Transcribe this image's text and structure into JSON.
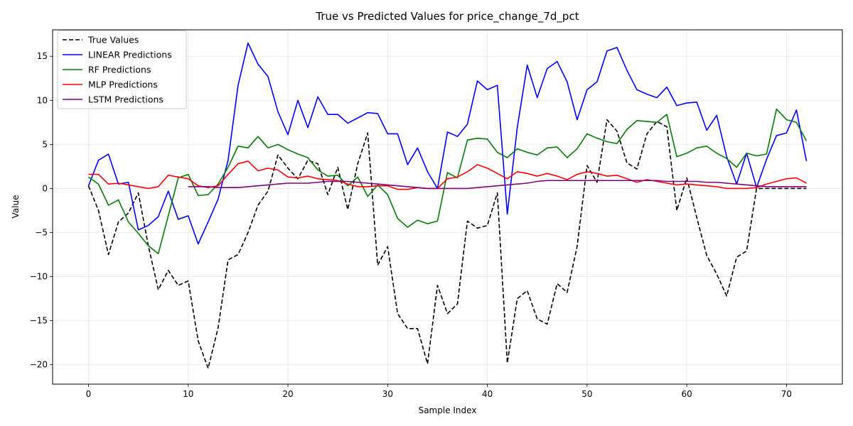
{
  "chart_data": {
    "type": "line",
    "title": "True vs Predicted Values for price_change_7d_pct",
    "xlabel": "Sample Index",
    "ylabel": "Value",
    "xlim": [
      -3.6,
      75.6
    ],
    "ylim": [
      -22.2,
      18.0
    ],
    "xticks": [
      0,
      10,
      20,
      30,
      40,
      50,
      60,
      70
    ],
    "yticks": [
      -20,
      -15,
      -10,
      -5,
      0,
      5,
      10,
      15
    ],
    "ytick_labels": [
      "−20",
      "−15",
      "−10",
      "−5",
      "0",
      "5",
      "10",
      "15"
    ],
    "grid": true,
    "legend_position": "upper-left",
    "series": [
      {
        "name": "True Values",
        "color": "#000000",
        "dashed": true,
        "x_start": 0,
        "values": [
          0.3,
          -2.5,
          -7.5,
          -3.8,
          -2.8,
          -0.5,
          -6.5,
          -11.5,
          -9.3,
          -11.0,
          -10.5,
          -17.3,
          -20.4,
          -15.8,
          -8.1,
          -7.5,
          -5.0,
          -1.9,
          -0.3,
          3.8,
          2.3,
          1.1,
          3.2,
          2.8,
          -0.7,
          2.4,
          -2.4,
          2.8,
          6.3,
          -8.7,
          -6.6,
          -14.2,
          -15.9,
          -15.9,
          -19.9,
          -11.0,
          -14.2,
          -13.1,
          -3.7,
          -4.5,
          -4.2,
          -0.5,
          -19.8,
          -12.5,
          -11.6,
          -14.8,
          -15.4,
          -10.8,
          -11.8,
          -6.6,
          2.6,
          0.7,
          7.8,
          6.5,
          2.9,
          2.2,
          6.2,
          7.6,
          7.0,
          -2.5,
          1.2,
          -3.3,
          -7.6,
          -9.7,
          -12.2,
          -7.8,
          -7.1,
          0.0,
          0.0,
          0.0,
          0.0,
          0.0,
          0.0
        ]
      },
      {
        "name": "LINEAR Predictions",
        "color": "#0000ff",
        "dashed": false,
        "x_start": 0,
        "values": [
          0.3,
          3.2,
          3.9,
          0.5,
          0.7,
          -4.7,
          -4.2,
          -3.2,
          -0.3,
          -3.5,
          -3.1,
          -6.3,
          -3.8,
          -1.2,
          3.2,
          11.7,
          16.5,
          14.1,
          12.7,
          8.7,
          6.1,
          10.0,
          6.9,
          10.4,
          8.4,
          8.4,
          7.4,
          8.0,
          8.6,
          8.5,
          6.2,
          6.2,
          2.7,
          4.6,
          1.9,
          0.0,
          6.4,
          5.9,
          7.3,
          12.2,
          11.2,
          11.7,
          -2.9,
          6.9,
          14.0,
          10.3,
          13.6,
          14.4,
          12.1,
          7.8,
          11.2,
          12.1,
          15.6,
          16.0,
          13.4,
          11.2,
          10.7,
          10.3,
          11.5,
          9.4,
          9.7,
          9.8,
          6.6,
          8.3,
          3.6,
          0.5,
          4.0,
          0.1,
          3.3,
          6.0,
          6.3,
          8.9,
          3.1
        ]
      },
      {
        "name": "RF Predictions",
        "color": "#008000",
        "dashed": false,
        "x_start": 0,
        "values": [
          1.3,
          0.5,
          -1.9,
          -1.3,
          -3.8,
          -5.1,
          -6.5,
          -7.4,
          -3.1,
          1.2,
          1.6,
          -0.8,
          -0.7,
          0.5,
          2.4,
          4.8,
          4.6,
          5.9,
          4.6,
          5.0,
          4.4,
          3.9,
          3.5,
          2.1,
          1.4,
          1.5,
          0.3,
          1.3,
          -0.9,
          0.4,
          -0.7,
          -3.4,
          -4.4,
          -3.6,
          -4.0,
          -3.7,
          1.8,
          1.2,
          5.5,
          5.7,
          5.6,
          4.1,
          3.5,
          4.5,
          4.1,
          3.8,
          4.6,
          4.7,
          3.5,
          4.5,
          6.2,
          5.7,
          5.3,
          5.1,
          6.7,
          7.7,
          7.6,
          7.5,
          8.4,
          3.6,
          4.0,
          4.6,
          4.8,
          4.0,
          3.4,
          2.4,
          4.0,
          3.7,
          3.9,
          9.0,
          7.8,
          7.5,
          5.4
        ]
      },
      {
        "name": "MLP Predictions",
        "color": "#ff0000",
        "dashed": false,
        "x_start": 0,
        "values": [
          1.6,
          1.6,
          0.5,
          0.6,
          0.4,
          0.2,
          -0.0,
          0.2,
          1.5,
          1.3,
          1.1,
          0.3,
          0.1,
          0.3,
          1.6,
          2.8,
          3.1,
          2.0,
          2.3,
          2.1,
          1.3,
          1.2,
          1.4,
          1.1,
          1.0,
          0.9,
          0.5,
          0.2,
          0.2,
          0.3,
          0.3,
          -0.1,
          -0.1,
          0.1,
          0.0,
          0.0,
          1.1,
          1.3,
          1.9,
          2.7,
          2.3,
          1.7,
          1.1,
          1.9,
          1.7,
          1.4,
          1.7,
          1.4,
          1.0,
          1.6,
          1.9,
          1.7,
          1.4,
          1.5,
          1.1,
          0.7,
          1.0,
          0.8,
          0.6,
          0.4,
          0.5,
          0.4,
          0.3,
          0.2,
          0.0,
          0.0,
          0.0,
          0.1,
          0.5,
          0.8,
          1.1,
          1.2,
          0.6
        ]
      },
      {
        "name": "LSTM Predictions",
        "color": "#800080",
        "dashed": false,
        "x_start": 10,
        "values": [
          0.2,
          0.2,
          0.2,
          0.1,
          0.1,
          0.1,
          0.2,
          0.3,
          0.4,
          0.5,
          0.6,
          0.6,
          0.6,
          0.7,
          0.8,
          0.8,
          0.8,
          0.7,
          0.6,
          0.5,
          0.4,
          0.3,
          0.2,
          0.1,
          0.0,
          0.0,
          0.0,
          0.0,
          0.0,
          0.1,
          0.2,
          0.3,
          0.4,
          0.5,
          0.6,
          0.8,
          0.9,
          0.9,
          0.9,
          0.9,
          0.9,
          0.9,
          0.9,
          0.9,
          0.9,
          0.9,
          0.9,
          0.9,
          0.8,
          0.8,
          0.8,
          0.8,
          0.7,
          0.7,
          0.6,
          0.5,
          0.4,
          0.3,
          0.2,
          0.2,
          0.2,
          0.2,
          0.2
        ]
      }
    ]
  }
}
